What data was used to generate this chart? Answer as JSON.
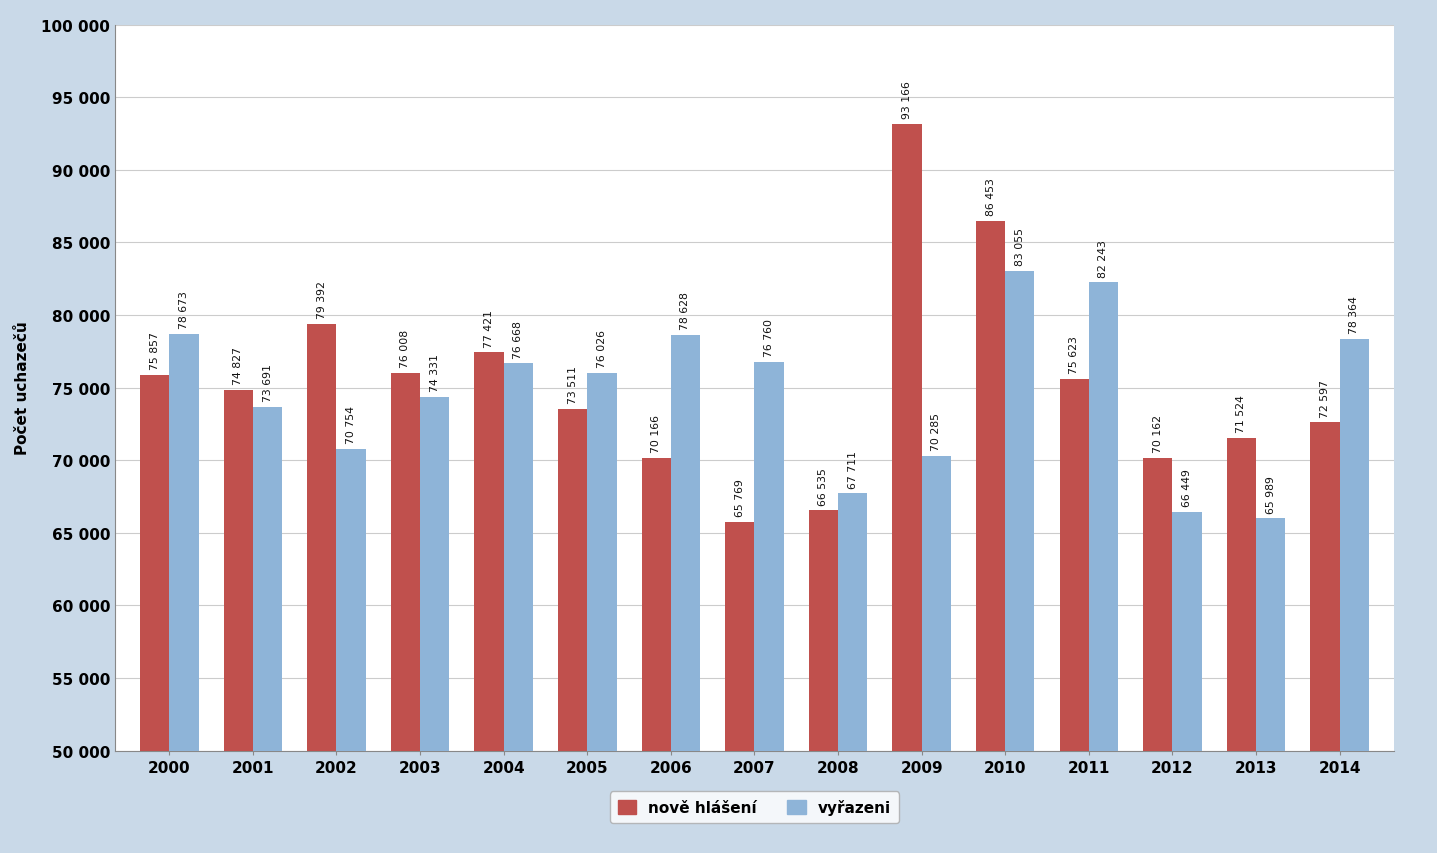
{
  "years": [
    2000,
    2001,
    2002,
    2003,
    2004,
    2005,
    2006,
    2007,
    2008,
    2009,
    2010,
    2011,
    2012,
    2013,
    2014
  ],
  "nove_hlaseni": [
    75857,
    74827,
    79392,
    76008,
    77421,
    73511,
    70166,
    65769,
    66535,
    93166,
    86453,
    75623,
    70162,
    71524,
    72597
  ],
  "vyrazeni": [
    78673,
    73691,
    70754,
    74331,
    76668,
    76026,
    78628,
    76760,
    67711,
    70285,
    83055,
    82243,
    66449,
    65989,
    78364
  ],
  "color_nove": "#C0504D",
  "color_vyrazeni": "#8EB4D8",
  "ylabel": "Počet uchazečů",
  "ylim_min": 50000,
  "ylim_max": 100000,
  "yticks": [
    50000,
    55000,
    60000,
    65000,
    70000,
    75000,
    80000,
    85000,
    90000,
    95000,
    100000
  ],
  "legend_nove": "nově hlášení",
  "legend_vyrazeni": "vyřazeni",
  "background_outer": "#C9D9E8",
  "background_plot": "#FFFFFF",
  "bar_width": 0.35,
  "label_fontsize": 7.8,
  "axis_fontsize": 11,
  "tick_fontsize": 11
}
